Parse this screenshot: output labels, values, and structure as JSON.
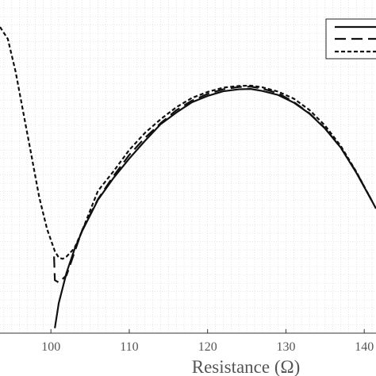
{
  "chart_data": {
    "type": "line",
    "title": "",
    "xlabel": "Resistance (Ω)",
    "ylabel": "",
    "xlim": [
      93.5,
      141.5
    ],
    "ylim": [
      0,
      1
    ],
    "x_ticks": [
      100,
      110,
      120,
      130,
      140
    ],
    "x_tick_labels": [
      "100",
      "110",
      "120",
      "130",
      "140"
    ],
    "grid": "dotted",
    "legend": {
      "placement": "top-right",
      "entries": [
        "",
        "",
        ""
      ]
    },
    "series": [
      {
        "style": "solid",
        "x": [
          100.5,
          101,
          102,
          103,
          104,
          106,
          108,
          110,
          112,
          114,
          116,
          118,
          120,
          122,
          124,
          125.5,
          127,
          129,
          131,
          133,
          135,
          137,
          139,
          141,
          141.5
        ],
        "y": [
          0.015,
          0.09,
          0.182,
          0.251,
          0.307,
          0.4,
          0.466,
          0.524,
          0.577,
          0.627,
          0.662,
          0.693,
          0.712,
          0.726,
          0.732,
          0.733,
          0.727,
          0.715,
          0.692,
          0.659,
          0.614,
          0.557,
          0.481,
          0.396,
          0.374
        ]
      },
      {
        "style": "dashed",
        "x": [
          100.4,
          100.5,
          101,
          102,
          104,
          106,
          108,
          110,
          112,
          114,
          116,
          118,
          120,
          122,
          124,
          125.5,
          127,
          129,
          131,
          133,
          135,
          137,
          139,
          141
        ],
        "y": [
          0.23,
          0.159,
          0.152,
          0.174,
          0.31,
          0.402,
          0.472,
          0.535,
          0.586,
          0.63,
          0.669,
          0.698,
          0.718,
          0.732,
          0.739,
          0.74,
          0.734,
          0.72,
          0.694,
          0.66,
          0.615,
          0.557,
          0.483,
          0.396
        ]
      },
      {
        "style": "dotted-dense",
        "x": [
          93.5,
          94.5,
          95.5,
          96.5,
          97.5,
          98.5,
          99.5,
          100.5,
          101,
          101.5,
          102,
          103,
          104,
          106,
          108,
          110,
          112,
          114,
          116,
          118,
          120,
          122,
          124,
          125.5,
          127,
          129,
          131,
          133,
          135,
          137,
          139,
          141
        ],
        "y": [
          0.919,
          0.883,
          0.784,
          0.659,
          0.535,
          0.409,
          0.313,
          0.246,
          0.227,
          0.223,
          0.23,
          0.255,
          0.308,
          0.427,
          0.486,
          0.55,
          0.601,
          0.642,
          0.678,
          0.706,
          0.724,
          0.737,
          0.742,
          0.743,
          0.738,
          0.725,
          0.704,
          0.67,
          0.623,
          0.562,
          0.484,
          0.396
        ]
      }
    ]
  }
}
